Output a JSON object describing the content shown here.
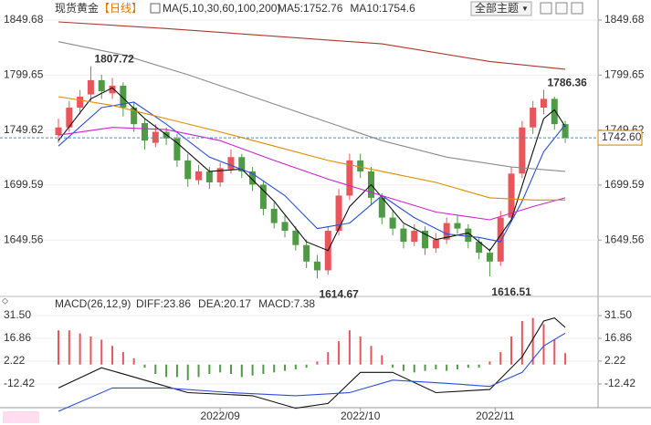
{
  "chart_data": [
    {
      "type": "candlestick",
      "title": "现货黄金",
      "period": "【日线】",
      "indicator": "MA(5,10,30,60,100,200)",
      "theme_button": "全部主题",
      "up_color": "#e8555a",
      "down_color": "#4f9a45",
      "candles": {
        "open": [
          1745,
          1752,
          1770,
          1782,
          1795,
          1783,
          1790,
          1770,
          1756,
          1738,
          1748,
          1742,
          1722,
          1704,
          1712,
          1702,
          1714,
          1725,
          1712,
          1700,
          1678,
          1666,
          1658,
          1645,
          1630,
          1622,
          1658,
          1690,
          1722,
          1712,
          1688,
          1670,
          1660,
          1648,
          1658,
          1642,
          1650,
          1665,
          1660,
          1648,
          1638,
          1630,
          1670,
          1710,
          1752,
          1770,
          1778,
          1755
        ],
        "high": [
          1760,
          1776,
          1786,
          1807.72,
          1800,
          1797,
          1793,
          1775,
          1760,
          1755,
          1752,
          1746,
          1728,
          1718,
          1716,
          1720,
          1732,
          1728,
          1716,
          1704,
          1684,
          1672,
          1662,
          1650,
          1636,
          1662,
          1696,
          1728,
          1728,
          1716,
          1692,
          1676,
          1664,
          1664,
          1662,
          1656,
          1670,
          1672,
          1664,
          1652,
          1642,
          1676,
          1716,
          1758,
          1776,
          1786.36,
          1780,
          1758
        ],
        "low": [
          1738,
          1748,
          1764,
          1776,
          1778,
          1778,
          1762,
          1748,
          1732,
          1734,
          1736,
          1716,
          1698,
          1700,
          1696,
          1698,
          1710,
          1706,
          1694,
          1672,
          1660,
          1652,
          1640,
          1624,
          1614.67,
          1618,
          1654,
          1686,
          1706,
          1682,
          1664,
          1654,
          1642,
          1644,
          1636,
          1638,
          1646,
          1655,
          1642,
          1632,
          1616.51,
          1626,
          1666,
          1706,
          1746,
          1764,
          1750,
          1738
        ],
        "close": [
          1752,
          1770,
          1780,
          1795,
          1785,
          1790,
          1770,
          1755,
          1740,
          1748,
          1742,
          1722,
          1705,
          1712,
          1702,
          1715,
          1725,
          1712,
          1700,
          1678,
          1665,
          1658,
          1645,
          1630,
          1622,
          1658,
          1690,
          1722,
          1712,
          1688,
          1670,
          1660,
          1648,
          1658,
          1642,
          1650,
          1665,
          1660,
          1648,
          1638,
          1630,
          1670,
          1710,
          1752,
          1770,
          1778,
          1755,
          1742.6
        ]
      },
      "series": [
        {
          "label": "MA5:1752.76",
          "color": "#111111",
          "x": [
            0,
            3,
            5,
            8,
            11,
            14,
            17,
            20,
            23,
            25,
            27,
            29,
            32,
            35,
            38,
            40,
            42,
            44,
            45,
            46,
            47
          ],
          "values": [
            1740,
            1778,
            1788,
            1760,
            1738,
            1712,
            1714,
            1685,
            1648,
            1640,
            1680,
            1700,
            1665,
            1650,
            1656,
            1640,
            1668,
            1730,
            1760,
            1768,
            1752.76
          ]
        },
        {
          "label": "MA10:1754.6",
          "color": "#2b4fd8",
          "x": [
            0,
            4,
            7,
            10,
            14,
            18,
            21,
            24,
            27,
            30,
            33,
            36,
            39,
            41,
            43,
            45,
            47
          ],
          "values": [
            1735,
            1770,
            1775,
            1755,
            1725,
            1710,
            1690,
            1660,
            1665,
            1690,
            1670,
            1655,
            1652,
            1648,
            1685,
            1730,
            1754.6
          ]
        },
        {
          "color": "#d020d0",
          "x": [
            0,
            5,
            10,
            15,
            20,
            25,
            30,
            35,
            40,
            44,
            47
          ],
          "values": [
            1745,
            1752,
            1750,
            1740,
            1722,
            1705,
            1690,
            1675,
            1668,
            1680,
            1688
          ]
        },
        {
          "color": "#e08a00",
          "x": [
            0,
            5,
            10,
            15,
            20,
            25,
            30,
            35,
            40,
            44,
            47
          ],
          "values": [
            1780,
            1772,
            1760,
            1748,
            1735,
            1722,
            1712,
            1702,
            1688,
            1686,
            1686
          ]
        },
        {
          "color": "#8a8a8a",
          "x": [
            0,
            6,
            12,
            18,
            24,
            30,
            36,
            42,
            47
          ],
          "values": [
            1830,
            1818,
            1800,
            1780,
            1760,
            1740,
            1725,
            1716,
            1712
          ]
        },
        {
          "color": "#a83a2a",
          "x": [
            0,
            10,
            20,
            30,
            40,
            47
          ],
          "values": [
            1848,
            1842,
            1835,
            1828,
            1812,
            1805
          ]
        }
      ],
      "ylim": [
        1602.44,
        1849.68
      ],
      "yticks": [
        1849.68,
        1799.65,
        1749.62,
        1699.59,
        1649.56
      ],
      "last_price": {
        "value": 1742.6,
        "label": "1742.60"
      },
      "annotations_high": [
        3,
        45
      ],
      "annotations_low": [
        24,
        40
      ],
      "xlim": [
        -0.17,
        47.5
      ],
      "xticks": [
        {
          "value": 15,
          "label": "2022/09"
        },
        {
          "value": 28,
          "label": "2022/10"
        },
        {
          "value": 40.5,
          "label": "2022/11"
        }
      ]
    },
    {
      "type": "macd",
      "title": "MACD(26,12,9)",
      "histogram": [
        22,
        22,
        20,
        18,
        16,
        12,
        8,
        4,
        -2,
        -6,
        -8,
        -8,
        -10,
        -8,
        -6,
        -5,
        -6,
        -8,
        -7,
        -6,
        -5,
        -4,
        -3,
        -2,
        2,
        8,
        15,
        22,
        18,
        12,
        6,
        -2,
        -4,
        -5,
        -4,
        -3,
        -4,
        -3,
        -2,
        -2,
        2,
        8,
        18,
        28,
        30,
        26,
        16,
        7.38
      ],
      "up_color": "#e8555a",
      "down_color": "#4f9a45",
      "series": [
        {
          "label": "DIFF:23.86",
          "color": "#111111",
          "x": [
            0,
            4,
            8,
            12,
            18,
            22,
            25,
            28,
            31,
            35,
            40,
            43,
            45,
            46,
            47
          ],
          "values": [
            -15,
            -2,
            -10,
            -18,
            -20,
            -28,
            -25,
            -5,
            -5,
            -18,
            -16,
            5,
            28,
            30,
            23.86
          ]
        },
        {
          "label": "DEA:20.17",
          "color": "#2b4fd8",
          "x": [
            0,
            5,
            10,
            16,
            22,
            27,
            31,
            36,
            40,
            43,
            45,
            47
          ],
          "values": [
            -30,
            -15,
            -15,
            -18,
            -20,
            -18,
            -10,
            -12,
            -14,
            -5,
            12,
            20.17
          ]
        }
      ],
      "hist_label": "MACD:7.38",
      "hist_label_color": "#d020d0",
      "ylim": [
        -26.5,
        37.36
      ],
      "yticks": [
        {
          "value": 31.5,
          "label": "31.50"
        },
        16.86,
        2.22,
        -12.42
      ]
    }
  ]
}
